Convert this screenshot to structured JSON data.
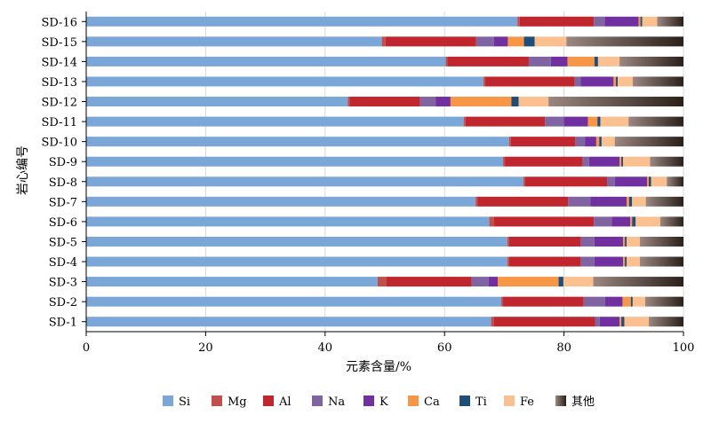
{
  "chart_data": {
    "type": "bar",
    "orientation": "horizontal",
    "stacked": true,
    "title": "",
    "xlabel": "元素含量/%",
    "ylabel": "岩心编号",
    "xlim": [
      0,
      100
    ],
    "xticks": [
      0,
      20,
      40,
      60,
      80,
      100
    ],
    "grid": true,
    "legend_position": "bottom",
    "categories": [
      "SD-16",
      "SD-15",
      "SD-14",
      "SD-13",
      "SD-12",
      "SD-11",
      "SD-10",
      "SD-9",
      "SD-8",
      "SD-7",
      "SD-6",
      "SD-5",
      "SD-4",
      "SD-3",
      "SD-2",
      "SD-1"
    ],
    "series": [
      {
        "name": "Si",
        "color": "#7ba7d8",
        "values": [
          72.2,
          49.5,
          60.2,
          66.5,
          43.8,
          63.2,
          70.8,
          69.8,
          73.2,
          65.2,
          67.5,
          70.5,
          70.5,
          48.8,
          69.5,
          67.8
        ]
      },
      {
        "name": "Mg",
        "color": "#c0504d",
        "values": [
          0.4,
          0.6,
          0.3,
          0.3,
          0.3,
          0.3,
          0.3,
          0.3,
          0.3,
          0.3,
          0.8,
          0.3,
          0.3,
          1.5,
          0.3,
          0.5
        ]
      },
      {
        "name": "Al",
        "color": "#c0262d",
        "values": [
          12.4,
          15.2,
          13.6,
          15.0,
          11.8,
          13.3,
          10.8,
          13.0,
          13.7,
          15.2,
          16.7,
          12.0,
          12.0,
          14.2,
          13.5,
          16.9
        ]
      },
      {
        "name": "Na",
        "color": "#8064a2",
        "values": [
          1.8,
          3.0,
          3.7,
          1.0,
          2.6,
          3.2,
          1.6,
          1.1,
          1.3,
          3.7,
          3.0,
          2.3,
          2.3,
          2.9,
          3.6,
          0.8
        ]
      },
      {
        "name": "K",
        "color": "#7030a0",
        "values": [
          5.7,
          2.3,
          2.8,
          5.5,
          2.5,
          4.0,
          1.9,
          5.1,
          5.4,
          6.1,
          3.1,
          4.8,
          4.8,
          1.5,
          2.9,
          3.3
        ]
      },
      {
        "name": "Ca",
        "color": "#f79646",
        "values": [
          0.3,
          2.7,
          4.5,
          0.4,
          10.2,
          1.6,
          0.5,
          0.3,
          0.3,
          0.4,
          0.3,
          0.3,
          0.3,
          10.2,
          1.4,
          0.3
        ]
      },
      {
        "name": "Ti",
        "color": "#1f4e79",
        "values": [
          0.3,
          1.8,
          0.6,
          0.3,
          1.2,
          0.5,
          0.4,
          0.3,
          0.4,
          0.5,
          0.6,
          0.3,
          0.3,
          0.8,
          0.3,
          0.5
        ]
      },
      {
        "name": "Fe",
        "color": "#fac090",
        "values": [
          2.5,
          5.3,
          3.6,
          2.5,
          5.0,
          4.7,
          2.2,
          4.5,
          2.6,
          2.3,
          4.1,
          2.2,
          2.2,
          5.0,
          2.1,
          4.1
        ]
      },
      {
        "name": "其他",
        "color": "#6a5a53",
        "values": [
          4.4,
          19.6,
          10.7,
          8.5,
          22.6,
          9.2,
          11.5,
          5.6,
          2.8,
          6.3,
          3.9,
          7.3,
          7.3,
          15.1,
          6.4,
          5.8
        ]
      }
    ]
  }
}
